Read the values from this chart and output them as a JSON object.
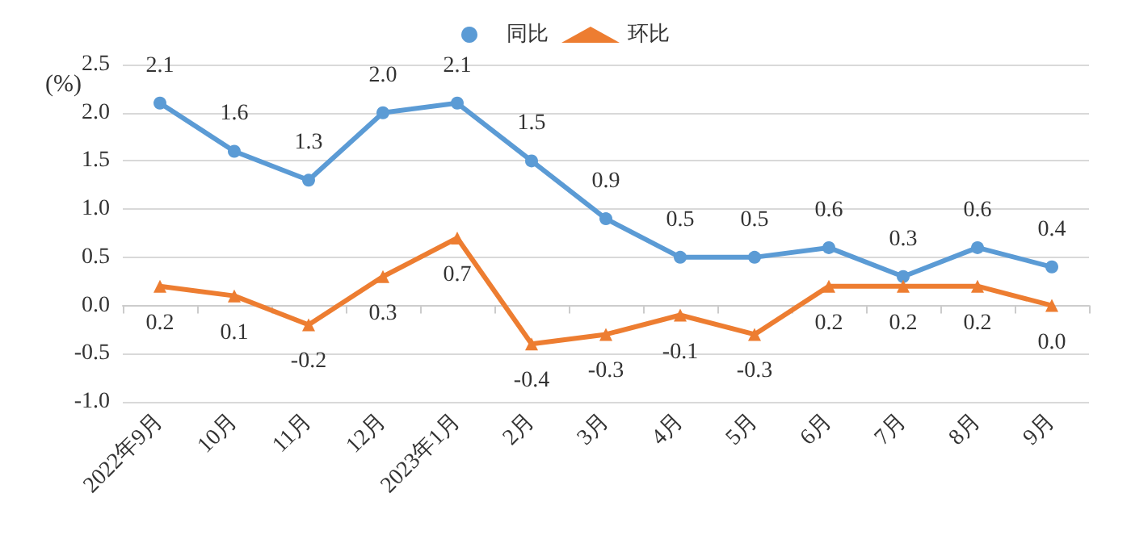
{
  "chart_data": {
    "type": "line",
    "ylabel": "(%)",
    "categories": [
      "2022年9月",
      "10月",
      "11月",
      "12月",
      "2023年1月",
      "2月",
      "3月",
      "4月",
      "5月",
      "6月",
      "7月",
      "8月",
      "9月"
    ],
    "series": [
      {
        "name": "同比",
        "color": "#5b9bd5",
        "marker": "circle",
        "values": [
          2.1,
          1.6,
          1.3,
          2.0,
          2.1,
          1.5,
          0.9,
          0.5,
          0.5,
          0.6,
          0.3,
          0.6,
          0.4
        ],
        "value_labels": [
          "2.1",
          "1.6",
          "1.3",
          "2.0",
          "2.1",
          "1.5",
          "0.9",
          "0.5",
          "0.5",
          "0.6",
          "0.3",
          "0.6",
          "0.4"
        ]
      },
      {
        "name": "环比",
        "color": "#ed7d31",
        "marker": "triangle",
        "values": [
          0.2,
          0.1,
          -0.2,
          0.3,
          0.7,
          -0.4,
          -0.3,
          -0.1,
          -0.3,
          0.2,
          0.2,
          0.2,
          0.0
        ],
        "value_labels": [
          "0.2",
          "0.1",
          "-0.2",
          "0.3",
          "0.7",
          "-0.4",
          "-0.3",
          "-0.1",
          "-0.3",
          "0.2",
          "0.2",
          "0.2",
          "0.0"
        ]
      }
    ],
    "ylim": [
      -1.0,
      2.5
    ],
    "yticks": [
      {
        "value": -1.0,
        "label": "-1.0"
      },
      {
        "value": -0.5,
        "label": "-0.5"
      },
      {
        "value": 0,
        "label": "0.0"
      },
      {
        "value": 0.5,
        "label": "0.5"
      },
      {
        "value": 1.0,
        "label": "1.0"
      },
      {
        "value": 1.5,
        "label": "1.5"
      },
      {
        "value": 2.0,
        "label": "2.0"
      },
      {
        "value": 2.5,
        "label": "2.5"
      }
    ],
    "grid": "y",
    "legend": "top",
    "line_style": "solid"
  }
}
